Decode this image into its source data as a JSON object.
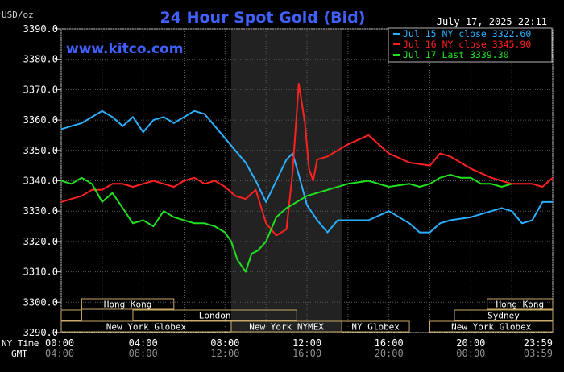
{
  "chart_data": {
    "type": "line",
    "title": "24 Hour Spot Gold (Bid)",
    "ylabel": "USD/oz",
    "watermark": "www.kitco.com",
    "timestamp": "July 17, 2025 22:11",
    "ylim": [
      3290,
      3390
    ],
    "xlim": [
      0,
      24
    ],
    "y_ticks": [
      "3390.0",
      "3380.0",
      "3370.0",
      "3360.0",
      "3350.0",
      "3340.0",
      "3330.0",
      "3320.0",
      "3310.0",
      "3300.0",
      "3290.0"
    ],
    "x_ticks": {
      "row_label_ny": "NY Time",
      "row_label_gmt": "GMT",
      "ny": [
        "00:00",
        "04:00",
        "08:00",
        "12:00",
        "16:00",
        "20:00",
        "23:59"
      ],
      "gmt": [
        "04:00",
        "08:00",
        "12:00",
        "16:00",
        "20:00",
        "00:00",
        "03:59"
      ]
    },
    "grid": true,
    "legend_position": "top-right",
    "shaded_session": [
      8.3,
      13.7
    ],
    "sessions": [
      {
        "label": "Hong Kong",
        "row": 0,
        "start": 1,
        "end": 5.5
      },
      {
        "label": "",
        "row": 1,
        "start": 0,
        "end": 1
      },
      {
        "label": "London",
        "row": 1,
        "start": 3.5,
        "end": 11.5
      },
      {
        "label": "New York Globex",
        "row": 2,
        "start": 0,
        "end": 8.3
      },
      {
        "label": "New York NYMEX",
        "row": 2,
        "start": 8.3,
        "end": 13.7
      },
      {
        "label": "NY Globex",
        "row": 2,
        "start": 13.7,
        "end": 17.0
      },
      {
        "label": "Hong Kong",
        "row": 0,
        "start": 20.8,
        "end": 24
      },
      {
        "label": "Sydney",
        "row": 1,
        "start": 19.2,
        "end": 24
      },
      {
        "label": "New York Globex",
        "row": 2,
        "start": 18.0,
        "end": 24
      }
    ],
    "series": [
      {
        "name": "Jul 15 NY close 3322.60",
        "color": "#2ab0ff",
        "x": [
          0,
          0.5,
          1,
          1.5,
          2,
          2.5,
          3,
          3.5,
          4,
          4.5,
          5,
          5.5,
          6,
          6.5,
          7,
          7.5,
          8,
          8.5,
          9,
          9.5,
          10,
          10.5,
          11,
          11.3,
          11.6,
          12,
          12.5,
          13,
          13.5,
          14,
          15,
          16,
          17,
          17.5,
          18,
          18.5,
          19,
          20,
          21,
          21.5,
          22,
          22.5,
          23,
          23.5,
          24
        ],
        "y": [
          3357,
          3358,
          3359,
          3361,
          3363,
          3361,
          3358,
          3361,
          3356,
          3360,
          3361,
          3359,
          3361,
          3363,
          3362,
          3358,
          3354,
          3350,
          3346,
          3340,
          3333,
          3340,
          3347,
          3349,
          3342,
          3332,
          3327,
          3323,
          3327,
          3327,
          3327,
          3330,
          3326,
          3323,
          3323,
          3326,
          3327,
          3328,
          3330,
          3331,
          3330,
          3326,
          3327,
          3333,
          3333
        ]
      },
      {
        "name": "Jul 16 NY close 3345.90",
        "color": "#ff2020",
        "x": [
          0,
          0.5,
          1,
          1.5,
          2,
          2.5,
          3,
          3.5,
          4,
          4.5,
          5,
          5.5,
          6,
          6.5,
          7,
          7.5,
          8,
          8.5,
          9,
          9.5,
          10,
          10.5,
          11,
          11.3,
          11.6,
          11.9,
          12.1,
          12.3,
          12.5,
          13,
          13.5,
          14,
          15,
          16,
          17,
          18,
          18.5,
          19,
          20,
          21,
          22,
          22.5,
          23,
          23.5,
          24
        ],
        "y": [
          3333,
          3334,
          3335,
          3337,
          3337,
          3339,
          3339,
          3338,
          3339,
          3340,
          3339,
          3338,
          3340,
          3341,
          3339,
          3340,
          3338,
          3335,
          3334,
          3337,
          3326,
          3322,
          3324,
          3343,
          3372,
          3359,
          3344,
          3340,
          3347,
          3348,
          3350,
          3352,
          3355,
          3349,
          3346,
          3345,
          3349,
          3348,
          3344,
          3341,
          3339,
          3339,
          3339,
          3338,
          3341
        ]
      },
      {
        "name": "Jul 17 Last 3339.30",
        "color": "#20e020",
        "x": [
          0,
          0.5,
          1,
          1.5,
          2,
          2.5,
          3,
          3.5,
          4,
          4.5,
          5,
          5.5,
          6,
          6.5,
          7,
          7.5,
          8,
          8.3,
          8.6,
          9,
          9.3,
          9.6,
          10,
          10.5,
          11,
          11.5,
          12,
          13,
          14,
          15,
          16,
          17,
          17.5,
          18,
          18.5,
          19,
          19.5,
          20,
          20.5,
          21,
          21.5,
          22
        ],
        "y": [
          3340,
          3339,
          3341,
          3339,
          3333,
          3336,
          3331,
          3326,
          3327,
          3325,
          3330,
          3328,
          3327,
          3326,
          3326,
          3325,
          3323,
          3320,
          3314,
          3310,
          3316,
          3317,
          3320,
          3328,
          3331,
          3333,
          3335,
          3337,
          3339,
          3340,
          3338,
          3339,
          3338,
          3339,
          3341,
          3342,
          3341,
          3341,
          3339,
          3339,
          3338,
          3339
        ]
      }
    ]
  }
}
